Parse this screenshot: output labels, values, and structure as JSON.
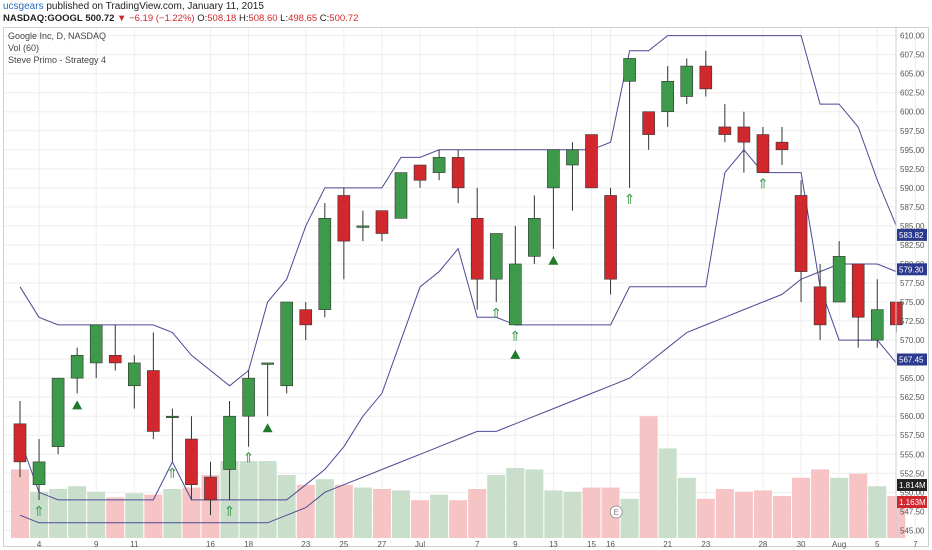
{
  "header": {
    "publisher": "ucsgears",
    "published_text": "published on TradingView.com, January 11, 2015",
    "symbol": "NASDAQ:GOOGL",
    "last": "500.72",
    "change": "▼ −6.19 (−1.22%)",
    "o_label": "O:",
    "o_value": "508.18",
    "h_label": "H:",
    "h_value": "508.60",
    "l_label": "L:",
    "l_value": "498.65",
    "c_label": "C:",
    "c_value": "500.72"
  },
  "legend": {
    "line1": "Google Inc, D, NASDAQ",
    "line2": "Vol (60)",
    "line3": "Steve Primo - Strategy 4"
  },
  "colors": {
    "up": "#3d9a4a",
    "down": "#d0282d",
    "band": "#4a4a96",
    "vol_up": "#c9dfcc",
    "vol_down": "#f7c4c6",
    "grid": "#eeeeee"
  },
  "chart_data": {
    "type": "candlestick",
    "ylim": [
      544,
      611
    ],
    "y_ticks": [
      "545.00",
      "547.50",
      "550.00",
      "552.50",
      "555.00",
      "557.50",
      "560.00",
      "562.50",
      "565.00",
      "567.50",
      "570.00",
      "572.50",
      "575.00",
      "577.50",
      "580.00",
      "582.50",
      "585.00",
      "587.50",
      "590.00",
      "592.50",
      "595.00",
      "597.50",
      "600.00",
      "602.50",
      "605.00",
      "607.50",
      "610.00"
    ],
    "x_labels": [
      {
        "label": "4",
        "index": 1
      },
      {
        "label": "9",
        "index": 4
      },
      {
        "label": "11",
        "index": 6
      },
      {
        "label": "16",
        "index": 10
      },
      {
        "label": "18",
        "index": 12
      },
      {
        "label": "23",
        "index": 15
      },
      {
        "label": "25",
        "index": 17
      },
      {
        "label": "27",
        "index": 19
      },
      {
        "label": "Jul",
        "index": 21
      },
      {
        "label": "7",
        "index": 24
      },
      {
        "label": "9",
        "index": 26
      },
      {
        "label": "13",
        "index": 28
      },
      {
        "label": "15",
        "index": 30
      },
      {
        "label": "16",
        "index": 31
      },
      {
        "label": "21",
        "index": 34
      },
      {
        "label": "23",
        "index": 36
      },
      {
        "label": "28",
        "index": 39
      },
      {
        "label": "30",
        "index": 41
      },
      {
        "label": "Aug",
        "index": 43
      },
      {
        "label": "5",
        "index": 45
      },
      {
        "label": "7",
        "index": 47
      }
    ],
    "candles": [
      {
        "o": 559,
        "h": 562,
        "l": 552,
        "c": 554
      },
      {
        "o": 551,
        "h": 557,
        "l": 549,
        "c": 554
      },
      {
        "o": 556,
        "h": 565,
        "l": 555,
        "c": 565
      },
      {
        "o": 565,
        "h": 569,
        "l": 563,
        "c": 568
      },
      {
        "o": 567,
        "h": 572,
        "l": 565,
        "c": 572
      },
      {
        "o": 568,
        "h": 572,
        "l": 566,
        "c": 567
      },
      {
        "o": 564,
        "h": 568,
        "l": 561,
        "c": 567
      },
      {
        "o": 566,
        "h": 571,
        "l": 557,
        "c": 558
      },
      {
        "o": 560,
        "h": 561,
        "l": 554,
        "c": 560
      },
      {
        "o": 557,
        "h": 560,
        "l": 549,
        "c": 551
      },
      {
        "o": 552,
        "h": 554,
        "l": 547,
        "c": 549
      },
      {
        "o": 553,
        "h": 562,
        "l": 549,
        "c": 560
      },
      {
        "o": 560,
        "h": 566,
        "l": 556,
        "c": 565
      },
      {
        "o": 567,
        "h": 567,
        "l": 560,
        "c": 567
      },
      {
        "o": 564,
        "h": 575,
        "l": 563,
        "c": 575
      },
      {
        "o": 574,
        "h": 575,
        "l": 570,
        "c": 572
      },
      {
        "o": 574,
        "h": 588,
        "l": 573,
        "c": 586
      },
      {
        "o": 589,
        "h": 590,
        "l": 578,
        "c": 583
      },
      {
        "o": 585,
        "h": 587,
        "l": 583,
        "c": 585
      },
      {
        "o": 587,
        "h": 587,
        "l": 583,
        "c": 584
      },
      {
        "o": 586,
        "h": 592,
        "l": 586,
        "c": 592
      },
      {
        "o": 593,
        "h": 593,
        "l": 590,
        "c": 591
      },
      {
        "o": 592,
        "h": 595,
        "l": 591,
        "c": 594
      },
      {
        "o": 594,
        "h": 595,
        "l": 588,
        "c": 590
      },
      {
        "o": 586,
        "h": 590,
        "l": 574,
        "c": 578
      },
      {
        "o": 578,
        "h": 584,
        "l": 575,
        "c": 584
      },
      {
        "o": 572,
        "h": 585,
        "l": 572,
        "c": 580
      },
      {
        "o": 581,
        "h": 589,
        "l": 580,
        "c": 586
      },
      {
        "o": 590,
        "h": 595,
        "l": 582,
        "c": 595
      },
      {
        "o": 593,
        "h": 596,
        "l": 587,
        "c": 595
      },
      {
        "o": 597,
        "h": 597,
        "l": 590,
        "c": 590
      },
      {
        "o": 589,
        "h": 590,
        "l": 576,
        "c": 578
      },
      {
        "o": 604,
        "h": 607,
        "l": 590,
        "c": 607
      },
      {
        "o": 600,
        "h": 600,
        "l": 595,
        "c": 597
      },
      {
        "o": 600,
        "h": 606,
        "l": 598,
        "c": 604
      },
      {
        "o": 602,
        "h": 607,
        "l": 601,
        "c": 606
      },
      {
        "o": 606,
        "h": 608,
        "l": 602,
        "c": 603
      },
      {
        "o": 598,
        "h": 601,
        "l": 596,
        "c": 597
      },
      {
        "o": 598,
        "h": 600,
        "l": 592,
        "c": 596
      },
      {
        "o": 597,
        "h": 598,
        "l": 592,
        "c": 592
      },
      {
        "o": 596,
        "h": 598,
        "l": 593,
        "c": 595
      },
      {
        "o": 589,
        "h": 591,
        "l": 575,
        "c": 579
      },
      {
        "o": 577,
        "h": 580,
        "l": 570,
        "c": 572
      },
      {
        "o": 575,
        "h": 583,
        "l": 575,
        "c": 581
      },
      {
        "o": 580,
        "h": 580,
        "l": 569,
        "c": 573
      },
      {
        "o": 570,
        "h": 578,
        "l": 569,
        "c": 574
      },
      {
        "o": 575,
        "h": 575,
        "l": 571,
        "c": 572
      }
    ],
    "volume_fraction": [
      0.49,
      0.33,
      0.35,
      0.37,
      0.33,
      0.29,
      0.32,
      0.31,
      0.35,
      0.36,
      0.45,
      0.55,
      0.55,
      0.55,
      0.45,
      0.38,
      0.42,
      0.38,
      0.36,
      0.35,
      0.34,
      0.27,
      0.31,
      0.27,
      0.35,
      0.45,
      0.5,
      0.49,
      0.34,
      0.33,
      0.36,
      0.36,
      0.28,
      0.87,
      0.64,
      0.43,
      0.28,
      0.35,
      0.33,
      0.34,
      0.3,
      0.43,
      0.49,
      0.43,
      0.46,
      0.37,
      0.3
    ],
    "upper_band": [
      577,
      573,
      572,
      572,
      572,
      572,
      572,
      572,
      571,
      568,
      566,
      564,
      566,
      575,
      578,
      585,
      590,
      590,
      590,
      590,
      594,
      594,
      595,
      595,
      595,
      595,
      595,
      595,
      595,
      595,
      595,
      596,
      608,
      608,
      610,
      610,
      610,
      610,
      610,
      610,
      610,
      610,
      601,
      601,
      598,
      591,
      585
    ],
    "lower_band": [
      557,
      550,
      549,
      549,
      549,
      549,
      549,
      549,
      554,
      549,
      549,
      549,
      549,
      549,
      549,
      551,
      553,
      556,
      560,
      563,
      570,
      577,
      579,
      582,
      573,
      573,
      572,
      572,
      572,
      572,
      572,
      572,
      577,
      577,
      577,
      577,
      577,
      592,
      595,
      592,
      592,
      592,
      577,
      570,
      570,
      570,
      567
    ],
    "moving_avg": [
      547,
      546,
      546,
      546,
      546,
      546,
      546,
      546,
      546,
      546,
      546,
      546,
      546,
      546,
      547,
      548,
      550,
      551,
      552,
      553,
      554,
      555,
      556,
      557,
      558,
      558,
      559,
      560,
      561,
      562,
      563,
      564,
      565,
      567,
      569,
      571,
      572,
      573,
      574,
      575,
      576,
      578,
      579,
      580,
      580,
      580,
      579
    ],
    "up_arrows": [
      1,
      8,
      11,
      12,
      25,
      26,
      32,
      39
    ],
    "up_triangles": [
      3,
      13,
      28
    ],
    "down_triangle_up_markers": [
      26
    ],
    "price_tags": [
      {
        "value": "583.82",
        "price": 583.82,
        "bg": "#2b3a8e"
      },
      {
        "value": "579.30",
        "price": 579.3,
        "bg": "#2b3a8e"
      },
      {
        "value": "567.45",
        "price": 567.45,
        "bg": "#2b3a8e"
      }
    ],
    "volume_tags": [
      {
        "value": "1.814M",
        "bg": "#222222"
      },
      {
        "value": "1.163M",
        "bg": "#d0282d"
      }
    ],
    "event_marker": "E"
  }
}
